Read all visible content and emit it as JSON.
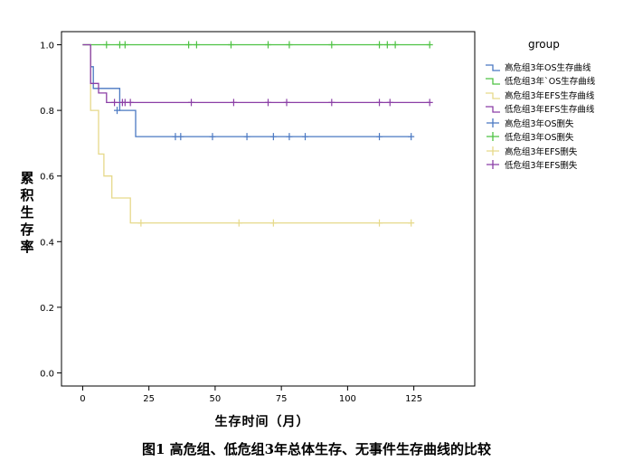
{
  "chart_data": {
    "type": "line",
    "subtype": "step-survival",
    "xlabel": "生存时间（月）",
    "ylabel": "累积生存率",
    "xlim": [
      -8,
      148
    ],
    "ylim": [
      -0.04,
      1.04
    ],
    "xticks": [
      0,
      25,
      50,
      75,
      100,
      125
    ],
    "yticks": [
      0.0,
      0.2,
      0.4,
      0.6,
      0.8,
      1.0
    ],
    "ytick_labels": [
      "0.0",
      "0.2",
      "0.4",
      "0.6",
      "0.8",
      "1.0"
    ],
    "grid": false,
    "legend_title": "group",
    "legend_position": "right",
    "series": [
      {
        "name": "高危组3年OS生存曲线",
        "color": "#4a78c2",
        "steps": [
          [
            0,
            1.0
          ],
          [
            3,
            0.933
          ],
          [
            4,
            0.867
          ],
          [
            8,
            0.867
          ],
          [
            14,
            0.8
          ],
          [
            20,
            0.72
          ],
          [
            124,
            0.72
          ]
        ]
      },
      {
        "name": "低危组3年OS生存曲线",
        "color": "#4ec243",
        "steps": [
          [
            0,
            1.0
          ],
          [
            131,
            1.0
          ]
        ]
      },
      {
        "name": "高危组3年EFS生存曲线",
        "color": "#e6d98a",
        "steps": [
          [
            0,
            1.0
          ],
          [
            3,
            0.8
          ],
          [
            6,
            0.667
          ],
          [
            8,
            0.6
          ],
          [
            11,
            0.533
          ],
          [
            18,
            0.457
          ],
          [
            124,
            0.457
          ]
        ]
      },
      {
        "name": "低危组3年EFS生存曲线",
        "color": "#8b3fa6",
        "steps": [
          [
            0,
            1.0
          ],
          [
            3,
            0.882
          ],
          [
            6,
            0.853
          ],
          [
            9,
            0.824
          ],
          [
            131,
            0.824
          ]
        ]
      }
    ],
    "censored": [
      {
        "name": "高危组3年OS删失",
        "color": "#4a78c2",
        "x": [
          13,
          35,
          37,
          49,
          62,
          72,
          78,
          84,
          112,
          124
        ],
        "y": [
          0.8,
          0.72,
          0.72,
          0.72,
          0.72,
          0.72,
          0.72,
          0.72,
          0.72,
          0.72
        ]
      },
      {
        "name": "低危组3年OS删失",
        "color": "#4ec243",
        "x": [
          9,
          14,
          16,
          40,
          43,
          56,
          70,
          78,
          94,
          112,
          115,
          118,
          131
        ],
        "y": [
          1.0,
          1.0,
          1.0,
          1.0,
          1.0,
          1.0,
          1.0,
          1.0,
          1.0,
          1.0,
          1.0,
          1.0,
          1.0
        ]
      },
      {
        "name": "高危组3年EFS删失",
        "color": "#e6d98a",
        "x": [
          22,
          59,
          72,
          112,
          124
        ],
        "y": [
          0.457,
          0.457,
          0.457,
          0.457,
          0.457
        ]
      },
      {
        "name": "低危组3年EFS删失",
        "color": "#8b3fa6",
        "x": [
          12,
          15,
          16,
          18,
          41,
          57,
          70,
          77,
          94,
          112,
          116,
          131
        ],
        "y": [
          0.824,
          0.824,
          0.824,
          0.824,
          0.824,
          0.824,
          0.824,
          0.824,
          0.824,
          0.824,
          0.824,
          0.824
        ]
      }
    ]
  },
  "caption": "图1  高危组、低危组3年总体生存、无事件生存曲线的比较",
  "legend_items": [
    {
      "label": "高危组3年OS生存曲线",
      "kind": "step",
      "color": "#4a78c2"
    },
    {
      "label": "低危组3年`OS生存曲线",
      "kind": "step",
      "color": "#4ec243"
    },
    {
      "label": "高危组3年EFS生存曲线",
      "kind": "step",
      "color": "#e6d98a"
    },
    {
      "label": "低危组3年EFS生存曲线",
      "kind": "step",
      "color": "#8b3fa6"
    },
    {
      "label": "高危组3年OS删失",
      "kind": "censor",
      "color": "#4a78c2"
    },
    {
      "label": "低危组3年OS删失",
      "kind": "censor",
      "color": "#4ec243"
    },
    {
      "label": "高危组3年EFS删失",
      "kind": "censor",
      "color": "#e6d98a"
    },
    {
      "label": "低危组3年EFS删失",
      "kind": "censor",
      "color": "#8b3fa6"
    }
  ]
}
